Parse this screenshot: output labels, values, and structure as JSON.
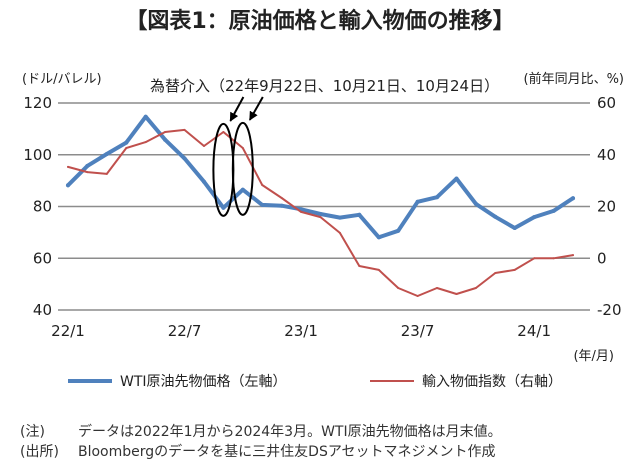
{
  "title": "【図表1：原油価格と輸入物価の推移】",
  "chart_data": {
    "type": "line",
    "x": [
      "22/1",
      "22/2",
      "22/3",
      "22/4",
      "22/5",
      "22/6",
      "22/7",
      "22/8",
      "22/9",
      "22/10",
      "22/11",
      "22/12",
      "23/1",
      "23/2",
      "23/3",
      "23/4",
      "23/5",
      "23/6",
      "23/7",
      "23/8",
      "23/9",
      "23/10",
      "23/11",
      "23/12",
      "24/1",
      "24/2",
      "24/3"
    ],
    "x_ticks": [
      "22/1",
      "22/7",
      "23/1",
      "23/7",
      "24/1"
    ],
    "xlabel": "(年/月)",
    "y_left": {
      "label": "(ドル/バレル)",
      "ylim": [
        40,
        120
      ],
      "ticks": [
        120,
        100,
        80,
        60,
        40
      ]
    },
    "y_right": {
      "label": "(前年同月比、%)",
      "ylim": [
        -20,
        60
      ],
      "ticks": [
        60,
        40,
        20,
        0,
        -20
      ]
    },
    "grid": true,
    "legend_position": "bottom",
    "series": [
      {
        "name": "WTI原油先物価格（左軸）",
        "axis": "left",
        "color": "#4f81bd",
        "values": [
          88.2,
          95.7,
          100.3,
          104.7,
          114.7,
          105.8,
          98.6,
          89.6,
          79.5,
          86.5,
          80.6,
          80.3,
          78.9,
          77.1,
          75.7,
          76.8,
          68.1,
          70.6,
          81.8,
          83.6,
          90.8,
          81.0,
          76.0,
          71.7,
          75.9,
          78.3,
          83.2
        ]
      },
      {
        "name": "輸入物価指数（右軸）",
        "axis": "right",
        "color": "#c0504d",
        "values": [
          35.3,
          33.3,
          32.6,
          42.6,
          44.9,
          48.8,
          49.6,
          43.4,
          48.8,
          42.6,
          28.3,
          23.3,
          17.9,
          15.9,
          9.8,
          -3.0,
          -4.5,
          -11.5,
          -14.6,
          -11.5,
          -13.8,
          -11.5,
          -5.7,
          -4.5,
          0.0,
          0.0,
          1.2
        ]
      }
    ],
    "annotation": {
      "text": "為替介入（22年9月22日、10月21日、10月24日）",
      "highlight_x": [
        "22/9",
        "22/10"
      ]
    }
  },
  "notes": [
    {
      "label": "(注)",
      "text": "データは2022年1月から2024年3月。WTI原油先物価格は月末値。"
    },
    {
      "label": "(出所)",
      "text": "Bloombergのデータを基に三井住友DSアセットマネジメント作成"
    }
  ]
}
